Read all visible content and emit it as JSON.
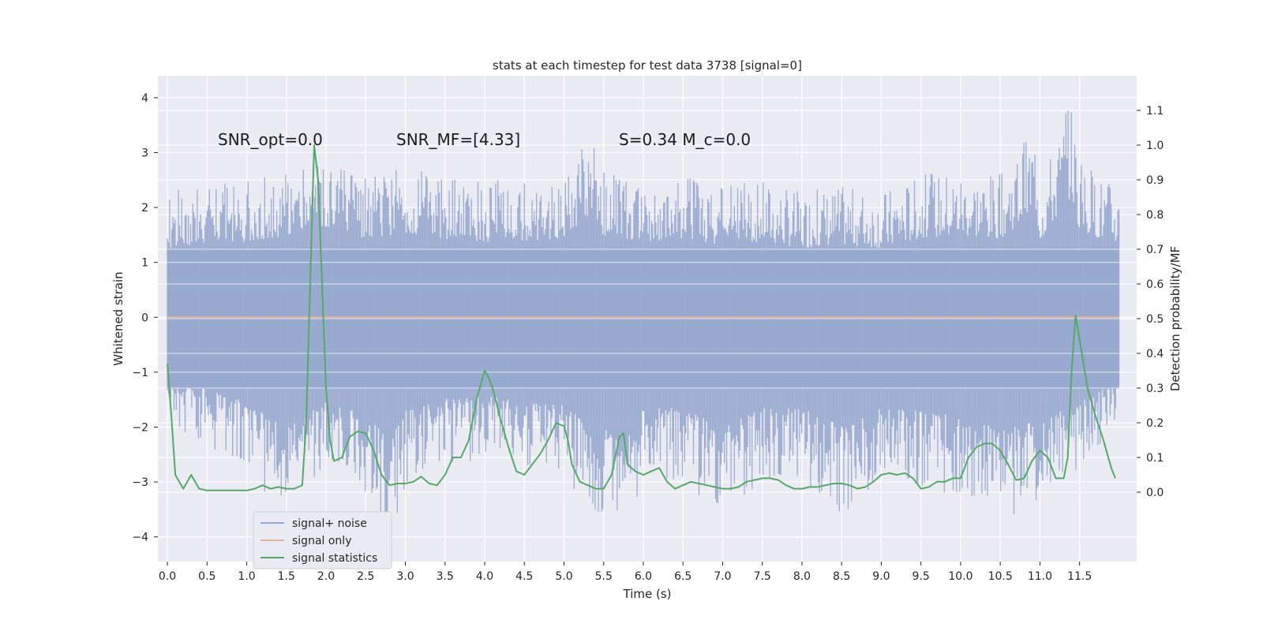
{
  "chart_data": {
    "type": "line",
    "title": "stats at each timestep for test data 3738 [signal=0]",
    "xlabel": "Time (s)",
    "ylabel": "Whitened strain",
    "ylabel_right": "Detection probability/MF",
    "xlim": [
      -0.12,
      12.22
    ],
    "ylim": [
      -4.45,
      4.4
    ],
    "ylim_right": [
      -0.2,
      1.2
    ],
    "x_ticks": [
      0.0,
      0.5,
      1.0,
      1.5,
      2.0,
      2.5,
      3.0,
      3.5,
      4.0,
      4.5,
      5.0,
      5.5,
      6.0,
      6.5,
      7.0,
      7.5,
      8.0,
      8.5,
      9.0,
      9.5,
      10.0,
      10.5,
      11.0,
      11.5
    ],
    "x_tick_labels": [
      "0.0",
      "0.5",
      "1.0",
      "1.5",
      "2.0",
      "2.5",
      "3.0",
      "3.5",
      "4.0",
      "4.5",
      "5.0",
      "5.5",
      "6.0",
      "6.5",
      "7.0",
      "7.5",
      "8.0",
      "8.5",
      "9.0",
      "9.5",
      "10.0",
      "10.5",
      "11.0",
      "11.5"
    ],
    "y_ticks": [
      4,
      3,
      2,
      1,
      0,
      -1,
      -2,
      -3,
      -4
    ],
    "y_tick_labels": [
      "4",
      "3",
      "2",
      "1",
      "0",
      "−1",
      "−2",
      "−3",
      "−4"
    ],
    "y_ticks_right": [
      1.1,
      1.0,
      0.9,
      0.8,
      0.7,
      0.6,
      0.5,
      0.4,
      0.3,
      0.2,
      0.1,
      0.0
    ],
    "y_tick_labels_right": [
      "1.1",
      "1.0",
      "0.9",
      "0.8",
      "0.7",
      "0.6",
      "0.5",
      "0.4",
      "0.3",
      "0.2",
      "0.1",
      "0.0"
    ],
    "grid": true,
    "annotations": [
      {
        "text": "SNR_opt=0.0",
        "x": 0.2,
        "y": 3.2
      },
      {
        "text": "SNR_MF=[4.33]",
        "x": 2.6,
        "y": 3.2
      },
      {
        "text": "S=0.34   M_c=0.0",
        "x": 5.6,
        "y": 3.2
      }
    ],
    "legend": {
      "location": "lower-left",
      "entries": [
        {
          "label": "signal+ noise",
          "color": "#97a9cf"
        },
        {
          "label": "signal only",
          "color": "#e5b19b"
        },
        {
          "label": "signal statistics",
          "color": "#55a868"
        }
      ]
    },
    "series": [
      {
        "name": "signal+ noise",
        "axis": "left",
        "style": "noise-band",
        "color": "#97a9cf",
        "x_range": [
          0.0,
          12.0
        ],
        "envelope_max": [
          [
            0.0,
            2.3
          ],
          [
            0.5,
            2.4
          ],
          [
            1.0,
            2.5
          ],
          [
            1.5,
            2.7
          ],
          [
            1.9,
            3.0
          ],
          [
            2.5,
            2.6
          ],
          [
            3.0,
            2.8
          ],
          [
            3.5,
            2.6
          ],
          [
            4.0,
            2.5
          ],
          [
            4.5,
            2.5
          ],
          [
            5.0,
            2.6
          ],
          [
            5.35,
            3.5
          ],
          [
            5.5,
            2.7
          ],
          [
            6.0,
            2.5
          ],
          [
            6.5,
            2.6
          ],
          [
            7.0,
            2.4
          ],
          [
            7.5,
            2.5
          ],
          [
            8.0,
            2.3
          ],
          [
            8.5,
            2.4
          ],
          [
            9.0,
            2.3
          ],
          [
            9.5,
            2.6
          ],
          [
            10.0,
            2.7
          ],
          [
            10.5,
            2.6
          ],
          [
            10.95,
            3.5
          ],
          [
            11.0,
            2.5
          ],
          [
            11.4,
            4.0
          ],
          [
            11.5,
            2.8
          ],
          [
            12.0,
            2.4
          ]
        ],
        "envelope_min": [
          [
            0.0,
            -2.0
          ],
          [
            0.5,
            -2.4
          ],
          [
            1.0,
            -2.8
          ],
          [
            1.5,
            -3.7
          ],
          [
            2.0,
            -2.8
          ],
          [
            2.5,
            -3.2
          ],
          [
            2.8,
            -4.1
          ],
          [
            3.0,
            -3.1
          ],
          [
            3.5,
            -2.7
          ],
          [
            4.0,
            -2.6
          ],
          [
            4.5,
            -2.8
          ],
          [
            5.0,
            -2.9
          ],
          [
            5.4,
            -3.7
          ],
          [
            5.8,
            -3.8
          ],
          [
            6.0,
            -3.0
          ],
          [
            6.5,
            -3.0
          ],
          [
            7.0,
            -3.6
          ],
          [
            7.5,
            -3.0
          ],
          [
            8.0,
            -3.0
          ],
          [
            8.5,
            -3.6
          ],
          [
            9.0,
            -3.0
          ],
          [
            9.5,
            -3.1
          ],
          [
            10.0,
            -3.3
          ],
          [
            10.5,
            -3.7
          ],
          [
            11.0,
            -3.4
          ],
          [
            11.5,
            -2.8
          ],
          [
            12.0,
            -2.1
          ]
        ]
      },
      {
        "name": "signal only",
        "axis": "left",
        "color": "#e5b19b",
        "x": [
          0.0,
          12.0
        ],
        "y": [
          0.0,
          0.0
        ]
      },
      {
        "name": "signal statistics",
        "axis": "right",
        "color": "#55a868",
        "x": [
          0.0,
          0.05,
          0.1,
          0.15,
          0.2,
          0.3,
          0.4,
          0.5,
          0.6,
          0.7,
          0.8,
          0.9,
          1.0,
          1.1,
          1.2,
          1.3,
          1.4,
          1.5,
          1.6,
          1.7,
          1.75,
          1.8,
          1.85,
          1.9,
          1.95,
          2.0,
          2.05,
          2.1,
          2.2,
          2.3,
          2.4,
          2.5,
          2.6,
          2.7,
          2.8,
          2.9,
          3.0,
          3.1,
          3.2,
          3.3,
          3.4,
          3.5,
          3.6,
          3.7,
          3.8,
          3.9,
          4.0,
          4.05,
          4.1,
          4.2,
          4.3,
          4.4,
          4.5,
          4.6,
          4.7,
          4.8,
          4.9,
          5.0,
          5.05,
          5.1,
          5.2,
          5.3,
          5.4,
          5.5,
          5.6,
          5.7,
          5.75,
          5.8,
          5.9,
          6.0,
          6.1,
          6.2,
          6.3,
          6.4,
          6.5,
          6.6,
          6.7,
          6.8,
          6.9,
          7.0,
          7.1,
          7.2,
          7.3,
          7.4,
          7.5,
          7.6,
          7.7,
          7.8,
          7.9,
          8.0,
          8.1,
          8.2,
          8.3,
          8.4,
          8.5,
          8.6,
          8.7,
          8.8,
          8.9,
          9.0,
          9.1,
          9.2,
          9.3,
          9.4,
          9.5,
          9.6,
          9.7,
          9.8,
          9.9,
          10.0,
          10.1,
          10.2,
          10.3,
          10.4,
          10.5,
          10.6,
          10.7,
          10.8,
          10.9,
          11.0,
          11.1,
          11.2,
          11.3,
          11.35,
          11.4,
          11.45,
          11.5,
          11.6,
          11.7,
          11.8,
          11.9,
          11.95
        ],
        "y": [
          0.37,
          0.22,
          0.05,
          0.03,
          0.01,
          0.05,
          0.01,
          0.005,
          0.005,
          0.005,
          0.005,
          0.005,
          0.005,
          0.01,
          0.02,
          0.01,
          0.015,
          0.01,
          0.01,
          0.02,
          0.2,
          0.6,
          1.0,
          0.9,
          0.6,
          0.3,
          0.15,
          0.09,
          0.1,
          0.16,
          0.175,
          0.17,
          0.12,
          0.05,
          0.02,
          0.025,
          0.025,
          0.03,
          0.045,
          0.025,
          0.02,
          0.05,
          0.1,
          0.1,
          0.15,
          0.27,
          0.35,
          0.33,
          0.3,
          0.21,
          0.13,
          0.06,
          0.05,
          0.08,
          0.11,
          0.15,
          0.2,
          0.19,
          0.15,
          0.08,
          0.03,
          0.02,
          0.01,
          0.01,
          0.05,
          0.16,
          0.17,
          0.08,
          0.06,
          0.05,
          0.06,
          0.07,
          0.03,
          0.01,
          0.02,
          0.03,
          0.025,
          0.02,
          0.015,
          0.01,
          0.01,
          0.015,
          0.03,
          0.035,
          0.04,
          0.04,
          0.035,
          0.02,
          0.01,
          0.01,
          0.015,
          0.015,
          0.02,
          0.025,
          0.025,
          0.02,
          0.01,
          0.015,
          0.03,
          0.05,
          0.055,
          0.05,
          0.055,
          0.04,
          0.01,
          0.015,
          0.03,
          0.03,
          0.04,
          0.04,
          0.1,
          0.13,
          0.14,
          0.14,
          0.12,
          0.08,
          0.035,
          0.04,
          0.09,
          0.12,
          0.1,
          0.04,
          0.04,
          0.1,
          0.35,
          0.51,
          0.44,
          0.3,
          0.22,
          0.15,
          0.07,
          0.04
        ]
      }
    ]
  }
}
